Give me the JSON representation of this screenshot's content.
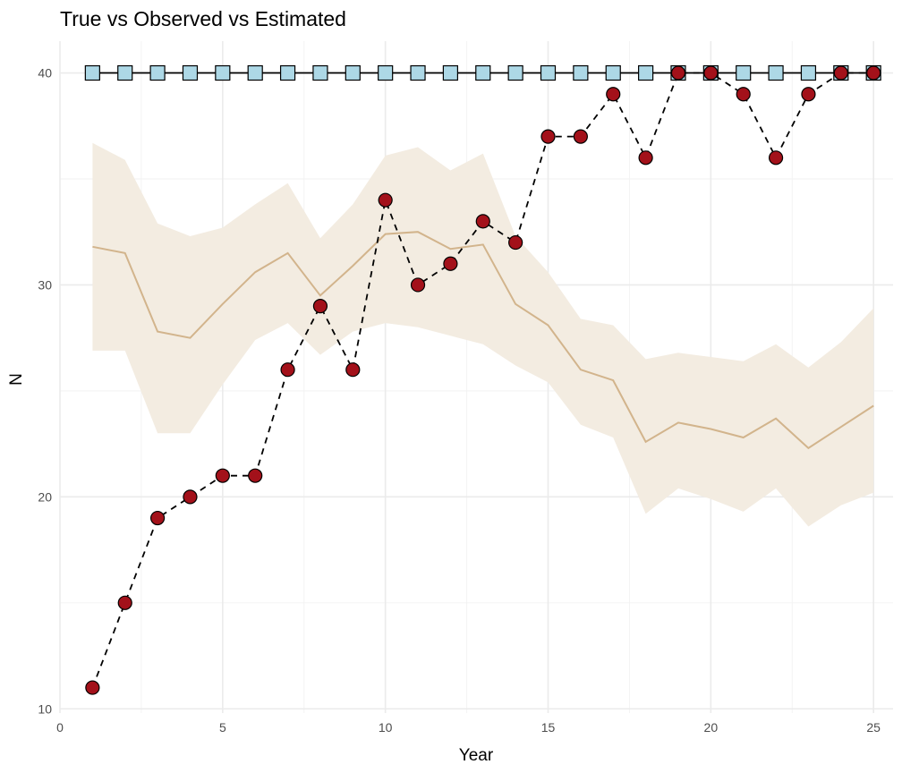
{
  "chart_data": {
    "type": "line",
    "title": "True vs Observed vs Estimated",
    "xlabel": "Year",
    "ylabel": "N",
    "xlim": [
      0,
      25.6
    ],
    "ylim": [
      9.8,
      41.5
    ],
    "x_ticks": [
      0,
      5,
      10,
      15,
      20,
      25
    ],
    "y_ticks": [
      10,
      20,
      30,
      40
    ],
    "grid": true,
    "legend": "none",
    "x": [
      1,
      2,
      3,
      4,
      5,
      6,
      7,
      8,
      9,
      10,
      11,
      12,
      13,
      14,
      15,
      16,
      17,
      18,
      19,
      20,
      21,
      22,
      23,
      24,
      25
    ],
    "series": [
      {
        "role": "interval",
        "lower": [
          26.9,
          26.9,
          23.0,
          23.0,
          25.3,
          27.4,
          28.2,
          26.7,
          27.8,
          28.2,
          28.0,
          27.6,
          27.2,
          26.2,
          25.4,
          23.4,
          22.8,
          19.2,
          20.4,
          19.9,
          19.3,
          20.4,
          18.6,
          19.6,
          20.2
        ],
        "upper": [
          36.7,
          35.9,
          32.9,
          32.3,
          32.7,
          33.8,
          34.8,
          32.2,
          33.8,
          36.1,
          36.5,
          35.4,
          36.2,
          32.3,
          30.6,
          28.4,
          28.1,
          26.5,
          26.8,
          26.6,
          26.4,
          27.2,
          26.1,
          27.3,
          28.9
        ],
        "color": "#f3ece1"
      },
      {
        "role": "estimated-line",
        "values": [
          31.8,
          31.5,
          27.8,
          27.5,
          29.1,
          30.6,
          31.5,
          29.5,
          30.9,
          32.4,
          32.5,
          31.7,
          31.9,
          29.1,
          28.1,
          26.0,
          25.5,
          22.6,
          23.5,
          23.2,
          22.8,
          23.7,
          22.3,
          23.3,
          24.3
        ],
        "color": "#d2b48c"
      },
      {
        "role": "true",
        "values": [
          40,
          40,
          40,
          40,
          40,
          40,
          40,
          40,
          40,
          40,
          40,
          40,
          40,
          40,
          40,
          40,
          40,
          40,
          40,
          40,
          40,
          40,
          40,
          40,
          40
        ],
        "color": "#add8e6",
        "marker": "square"
      },
      {
        "role": "observed",
        "values": [
          11,
          15,
          19,
          20,
          21,
          21,
          26,
          29,
          26,
          34,
          30,
          31,
          33,
          32,
          37,
          37,
          39,
          36,
          40,
          40,
          39,
          36,
          39,
          40,
          40
        ],
        "color": "#a3111a",
        "marker": "circle"
      }
    ]
  }
}
